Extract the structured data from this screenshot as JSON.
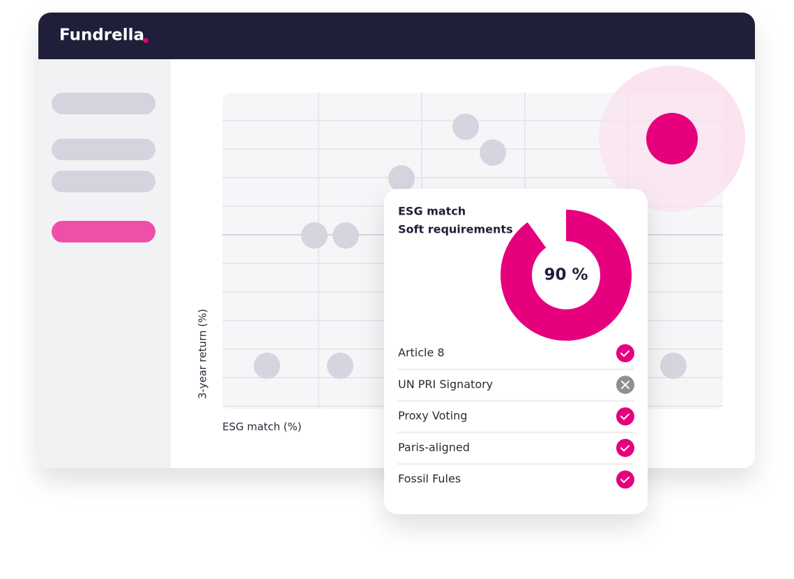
{
  "header": {
    "logo": "Fundrella"
  },
  "chart": {
    "x_label": "ESG match (%)",
    "y_label": "3-year return (%)"
  },
  "card": {
    "title": "ESG match",
    "subtitle": "Soft requirements",
    "donut": {
      "value": 90,
      "label": "90 %",
      "color": "#e6007e"
    },
    "items": [
      {
        "label": "Article 8",
        "checked": true
      },
      {
        "label": "UN PRI Signatory",
        "checked": false
      },
      {
        "label": "Proxy Voting",
        "checked": true
      },
      {
        "label": "Paris-aligned",
        "checked": true
      },
      {
        "label": "Fossil Fules",
        "checked": true
      }
    ]
  }
}
